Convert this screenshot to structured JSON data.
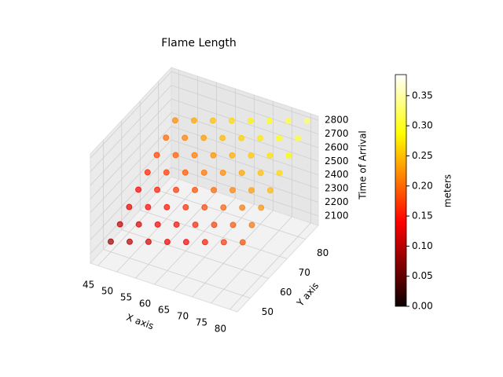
{
  "chart_data": {
    "type": "scatter3d",
    "title": "Flame Length",
    "xlabel": "X axis",
    "ylabel": "Y axis",
    "zlabel": "Time of Arrival",
    "colorbar_label": "meters",
    "colormap": "hot",
    "x": [
      45,
      45,
      45,
      45,
      45,
      45,
      45,
      45,
      50,
      50,
      50,
      50,
      50,
      50,
      50,
      50,
      55,
      55,
      55,
      55,
      55,
      55,
      55,
      55,
      60,
      60,
      60,
      60,
      60,
      60,
      60,
      60,
      65,
      65,
      65,
      65,
      65,
      65,
      65,
      65,
      70,
      70,
      70,
      70,
      70,
      70,
      70,
      70,
      75,
      75,
      75,
      75,
      75,
      75,
      75,
      75,
      80,
      80,
      80,
      80,
      80,
      80,
      80,
      80
    ],
    "y": [
      50,
      55,
      60,
      65,
      70,
      75,
      80,
      85,
      50,
      55,
      60,
      65,
      70,
      75,
      80,
      85,
      50,
      55,
      60,
      65,
      70,
      75,
      80,
      85,
      50,
      55,
      60,
      65,
      70,
      75,
      80,
      85,
      50,
      55,
      60,
      65,
      70,
      75,
      80,
      85,
      50,
      55,
      60,
      65,
      70,
      75,
      80,
      85,
      50,
      55,
      60,
      65,
      70,
      75,
      80,
      85,
      50,
      55,
      60,
      65,
      70,
      75,
      80,
      85
    ],
    "z": [
      2105,
      2160,
      2215,
      2270,
      2325,
      2380,
      2435,
      2490,
      2150,
      2205,
      2260,
      2315,
      2370,
      2425,
      2480,
      2535,
      2195,
      2250,
      2305,
      2360,
      2415,
      2470,
      2525,
      2580,
      2240,
      2295,
      2350,
      2405,
      2460,
      2515,
      2570,
      2625,
      2285,
      2340,
      2395,
      2450,
      2505,
      2560,
      2615,
      2670,
      2330,
      2385,
      2440,
      2495,
      2550,
      2605,
      2660,
      2715,
      2375,
      2430,
      2485,
      2540,
      2595,
      2650,
      2705,
      2760,
      2420,
      2475,
      2530,
      2585,
      2640,
      2695,
      2750,
      2805
    ],
    "values": [
      0.08,
      0.1,
      0.12,
      0.14,
      0.16,
      0.18,
      0.2,
      0.22,
      0.095,
      0.115,
      0.135,
      0.155,
      0.175,
      0.195,
      0.215,
      0.235,
      0.11,
      0.13,
      0.15,
      0.17,
      0.19,
      0.21,
      0.23,
      0.25,
      0.125,
      0.145,
      0.165,
      0.185,
      0.205,
      0.225,
      0.245,
      0.265,
      0.14,
      0.16,
      0.18,
      0.2,
      0.22,
      0.24,
      0.26,
      0.28,
      0.155,
      0.175,
      0.195,
      0.215,
      0.235,
      0.255,
      0.275,
      0.295,
      0.17,
      0.19,
      0.21,
      0.23,
      0.25,
      0.27,
      0.29,
      0.31,
      0.185,
      0.205,
      0.225,
      0.245,
      0.265,
      0.285,
      0.305,
      0.325
    ],
    "xlim": [
      43,
      82
    ],
    "ylim": [
      43,
      87
    ],
    "zlim": [
      2030,
      2830
    ],
    "clim": [
      0,
      0.385
    ],
    "xticks": [
      45,
      50,
      55,
      60,
      65,
      70,
      75,
      80
    ],
    "yticks": [
      50,
      60,
      70,
      80
    ],
    "zticks": [
      2100,
      2200,
      2300,
      2400,
      2500,
      2600,
      2700,
      2800
    ],
    "cticks": [
      {
        "value": 0,
        "label": "0.00"
      },
      {
        "value": 0.05,
        "label": "0.05"
      },
      {
        "value": 0.1,
        "label": "0.10"
      },
      {
        "value": 0.15,
        "label": "0.15"
      },
      {
        "value": 0.2,
        "label": "0.20"
      },
      {
        "value": 0.25,
        "label": "0.25"
      },
      {
        "value": 0.3,
        "label": "0.30"
      },
      {
        "value": 0.35,
        "label": "0.35"
      }
    ],
    "grid": true
  }
}
